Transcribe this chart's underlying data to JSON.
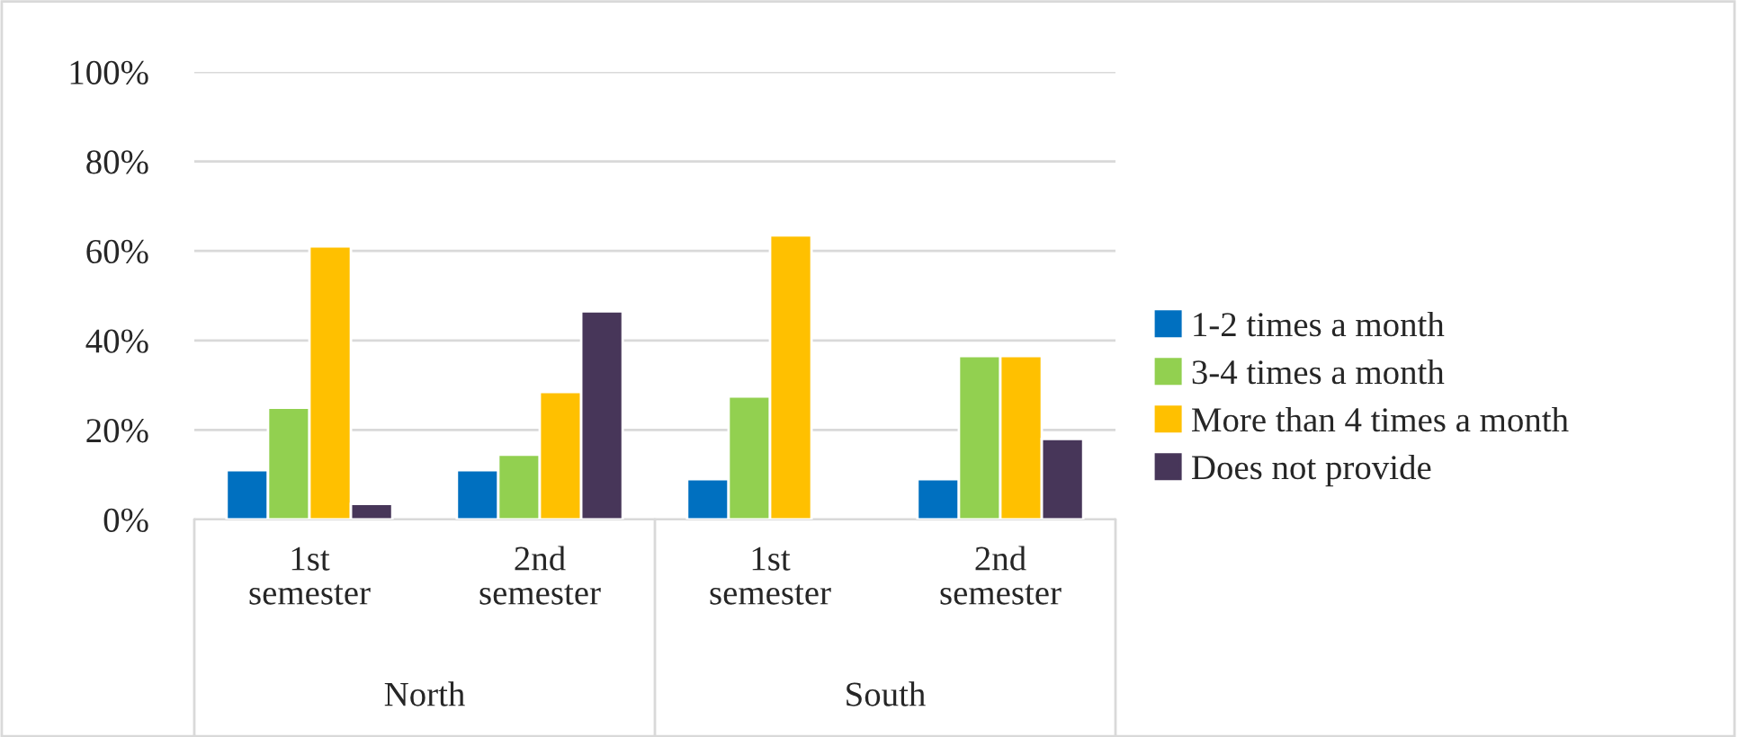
{
  "chart_data": {
    "type": "bar",
    "categories": [
      "1st semester",
      "2nd semester",
      "1st semester",
      "2nd semester"
    ],
    "series": [
      {
        "name": "1-2 times a month",
        "color": "#0070c0",
        "values": [
          11,
          11,
          9,
          9
        ]
      },
      {
        "name": "3-4 times a month",
        "color": "#92d050",
        "values": [
          25,
          14.5,
          27.5,
          36.5
        ]
      },
      {
        "name": "More than 4 times a month",
        "color": "#ffc000",
        "values": [
          61,
          28.5,
          63.5,
          36.5
        ]
      },
      {
        "name": "Does not provide",
        "color": "#473659",
        "values": [
          3.5,
          46.5,
          null,
          18
        ]
      }
    ],
    "annotations": [
      "North",
      "South"
    ],
    "ylim": [
      0,
      100
    ],
    "yticks": [
      {
        "value": 0,
        "label": "0%"
      },
      {
        "value": 20,
        "label": "20%"
      },
      {
        "value": 40,
        "label": "40%"
      },
      {
        "value": 60,
        "label": "60%"
      },
      {
        "value": 80,
        "label": "80%"
      },
      {
        "value": 100,
        "label": "100%"
      }
    ],
    "grid": "y",
    "legend": "right"
  }
}
